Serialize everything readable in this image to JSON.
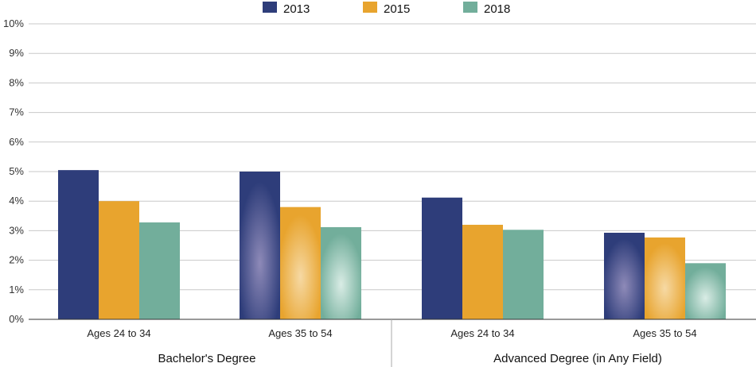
{
  "chart_data": {
    "type": "bar",
    "title": "",
    "xlabel": "",
    "ylabel": "",
    "ylim": [
      0,
      10
    ],
    "y_ticks": [
      "0%",
      "1%",
      "2%",
      "3%",
      "4%",
      "5%",
      "6%",
      "7%",
      "8%",
      "9%",
      "10%"
    ],
    "grid": true,
    "legend_position": "top-center",
    "groups": [
      "Bachelor's Degree",
      "Advanced Degree (in Any Field)"
    ],
    "categories": [
      "Ages 24 to 34",
      "Ages 35 to 54",
      "Ages 24 to 34",
      "Ages 35 to 54"
    ],
    "series": [
      {
        "name": "2013",
        "color": "#2e3d7a",
        "values": [
          5.05,
          5.0,
          4.12,
          2.93
        ]
      },
      {
        "name": "2015",
        "color": "#e8a42e",
        "values": [
          4.0,
          3.8,
          3.2,
          2.77
        ]
      },
      {
        "name": "2018",
        "color": "#72ae9b",
        "values": [
          3.28,
          3.12,
          3.03,
          1.9
        ]
      }
    ]
  }
}
